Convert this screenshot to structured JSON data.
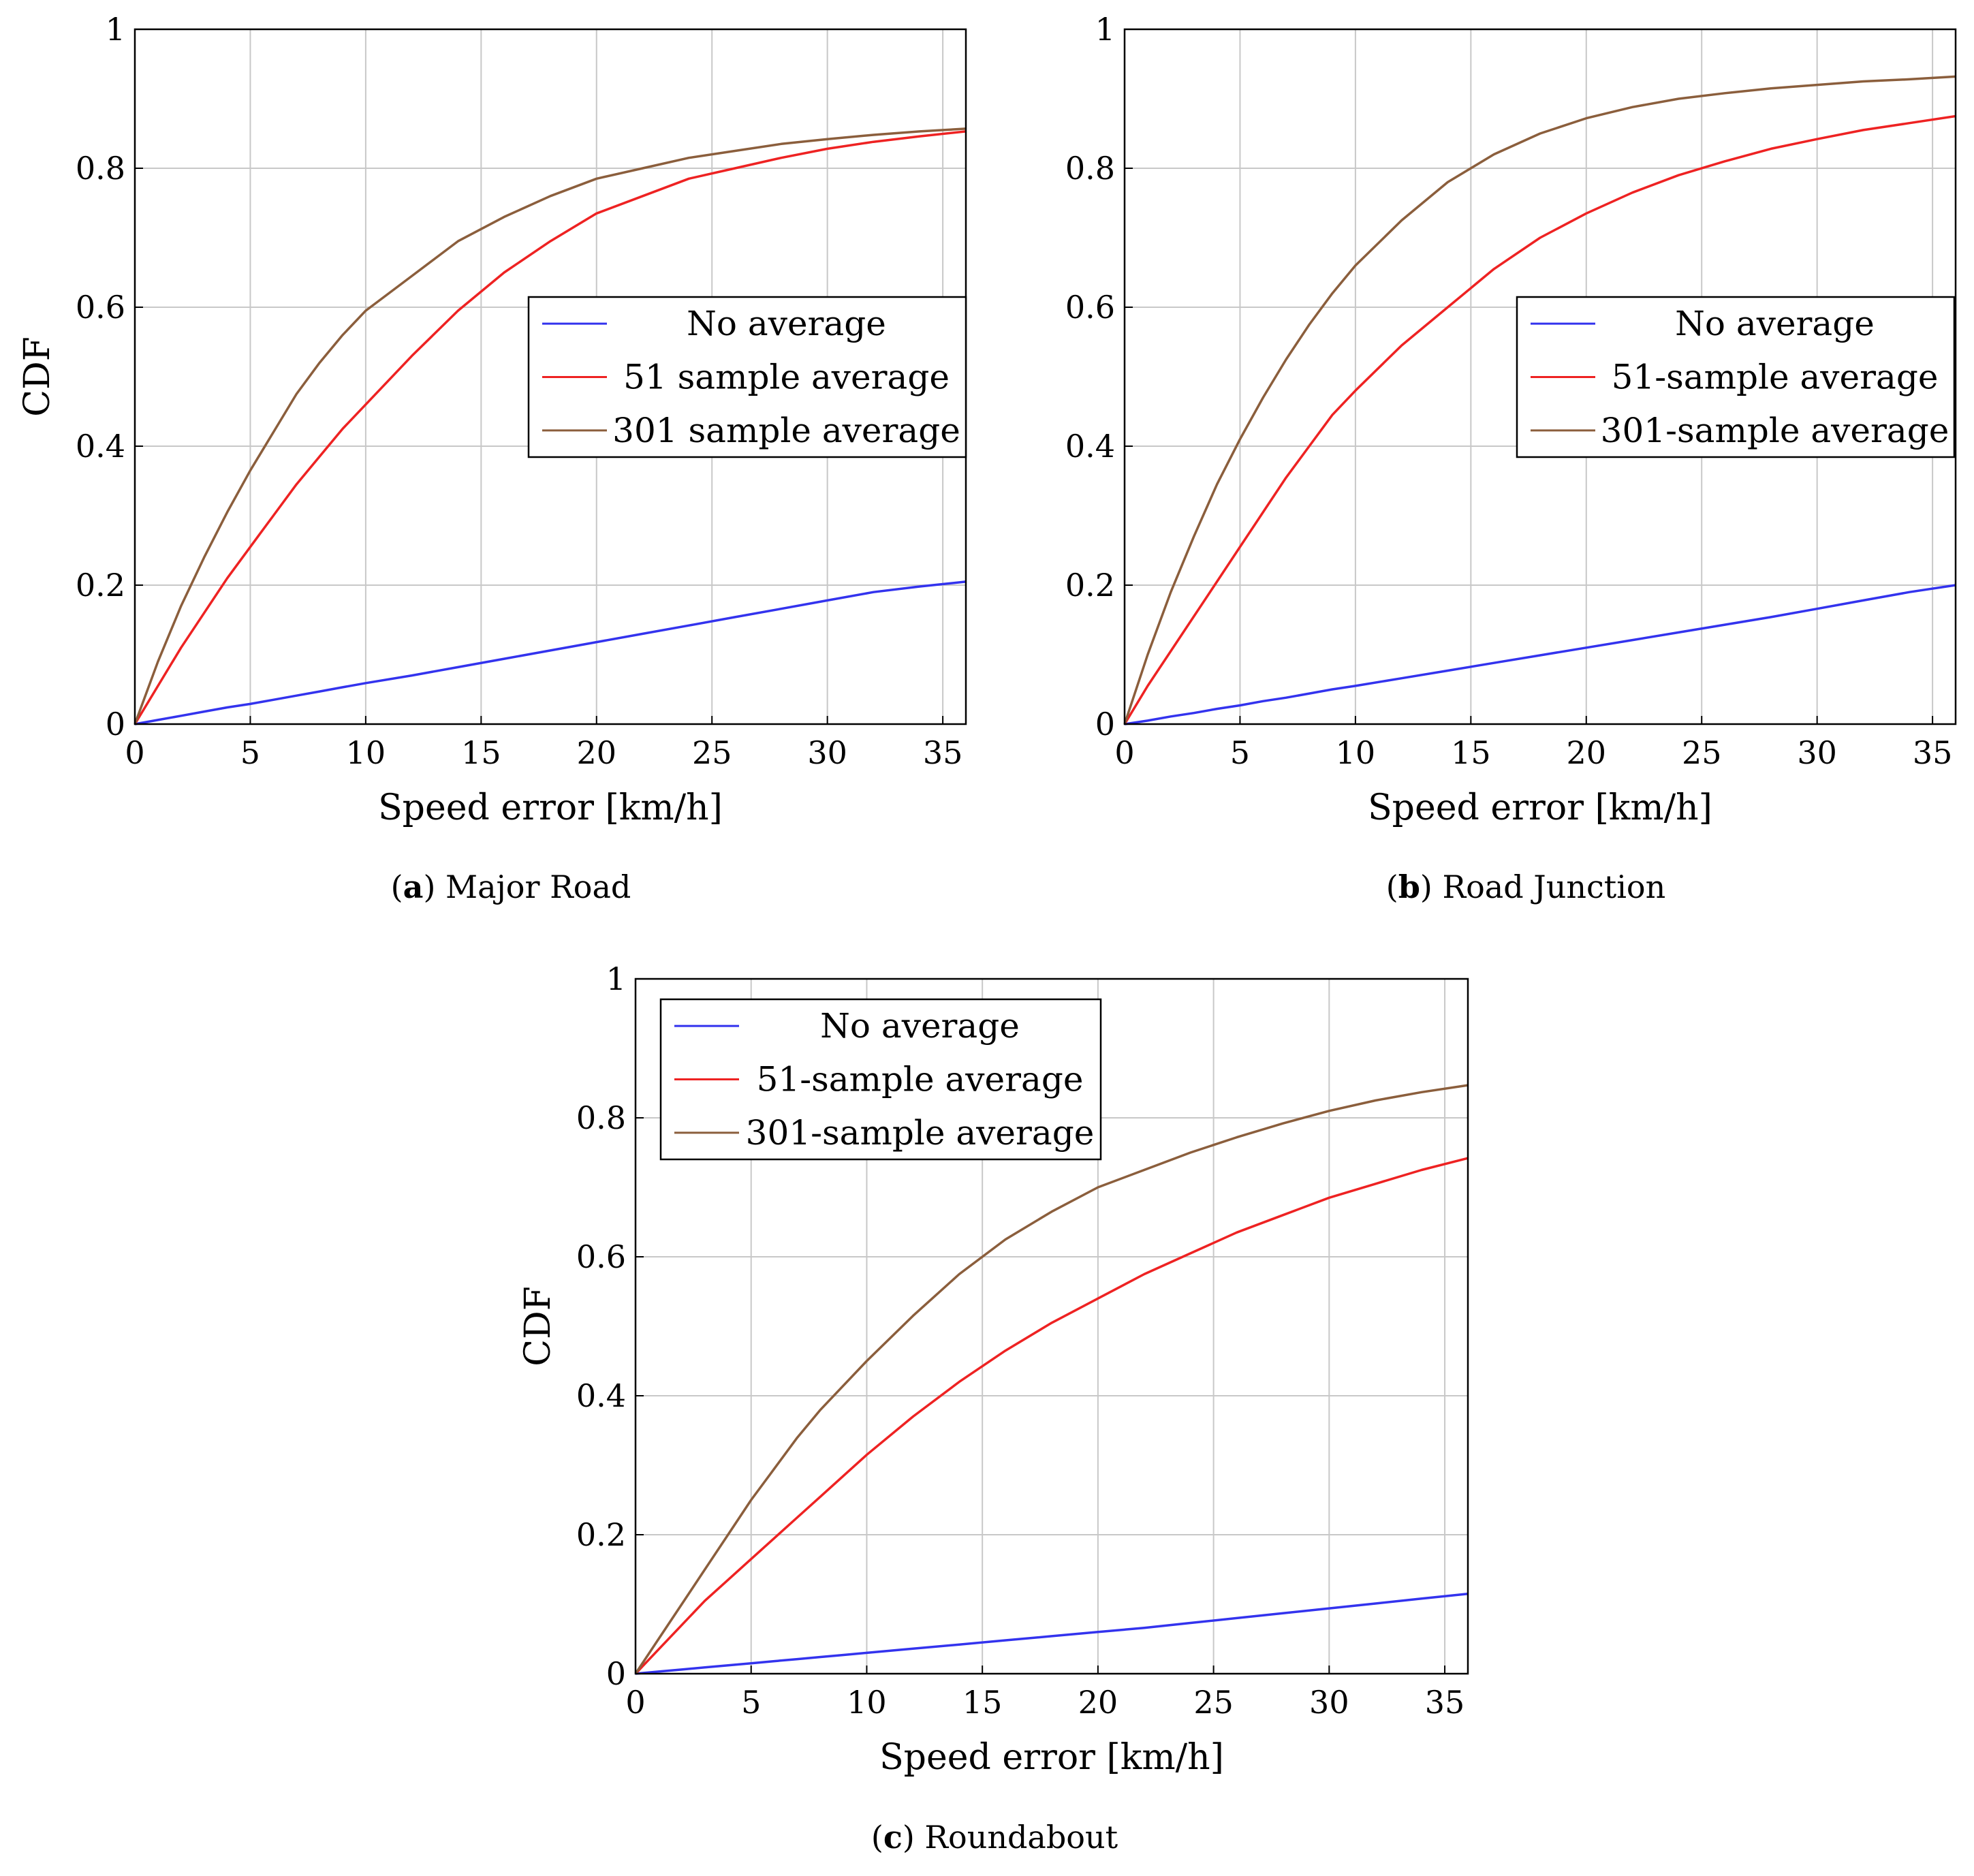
{
  "charts": [
    {
      "id": "a",
      "caption_letter": "a",
      "caption_text": "Major Road",
      "chart_data": {
        "type": "line",
        "title": "",
        "xlabel": "Speed error [km/h]",
        "ylabel": "CDF",
        "xlim": [
          0,
          36
        ],
        "ylim": [
          0,
          1
        ],
        "xticks": [
          0,
          5,
          10,
          15,
          20,
          25,
          30,
          35
        ],
        "yticks": [
          0,
          0.2,
          0.4,
          0.6,
          0.8,
          1
        ],
        "ytick_labels": [
          "0",
          "0.2",
          "0.4",
          "0.6",
          "0.8",
          "1"
        ],
        "grid": true,
        "legend_position": "center-right",
        "x": [
          0,
          1,
          2,
          3,
          4,
          5,
          6,
          7,
          8,
          9,
          10,
          12,
          14,
          16,
          18,
          20,
          22,
          24,
          26,
          28,
          30,
          32,
          34,
          36
        ],
        "series": [
          {
            "name": "No average",
            "color": "#3333ee",
            "values": [
              0,
              0.006,
              0.012,
              0.018,
              0.024,
              0.029,
              0.035,
              0.041,
              0.047,
              0.053,
              0.059,
              0.07,
              0.082,
              0.094,
              0.106,
              0.118,
              0.13,
              0.142,
              0.154,
              0.166,
              0.178,
              0.19,
              0.198,
              0.205
            ]
          },
          {
            "name": "51 sample average",
            "color": "#ee2222",
            "values": [
              0,
              0.055,
              0.11,
              0.16,
              0.21,
              0.255,
              0.3,
              0.345,
              0.385,
              0.425,
              0.46,
              0.53,
              0.595,
              0.65,
              0.695,
              0.735,
              0.76,
              0.785,
              0.8,
              0.815,
              0.828,
              0.838,
              0.846,
              0.853
            ]
          },
          {
            "name": "301 sample average",
            "color": "#8b5e3c",
            "values": [
              0,
              0.09,
              0.17,
              0.24,
              0.305,
              0.365,
              0.42,
              0.475,
              0.52,
              0.56,
              0.595,
              0.645,
              0.695,
              0.73,
              0.76,
              0.785,
              0.8,
              0.815,
              0.825,
              0.835,
              0.842,
              0.848,
              0.853,
              0.857
            ]
          }
        ]
      }
    },
    {
      "id": "b",
      "caption_letter": "b",
      "caption_text": "Road Junction",
      "chart_data": {
        "type": "line",
        "title": "",
        "xlabel": "Speed error [km/h]",
        "ylabel": "",
        "xlim": [
          0,
          36
        ],
        "ylim": [
          0,
          1
        ],
        "xticks": [
          0,
          5,
          10,
          15,
          20,
          25,
          30,
          35
        ],
        "yticks": [
          0,
          0.2,
          0.4,
          0.6,
          0.8,
          1
        ],
        "ytick_labels": [
          "0",
          "0.2",
          "0.4",
          "0.6",
          "0.8",
          "1"
        ],
        "grid": true,
        "legend_position": "center-right",
        "x": [
          0,
          1,
          2,
          3,
          4,
          5,
          6,
          7,
          8,
          9,
          10,
          12,
          14,
          16,
          18,
          20,
          22,
          24,
          26,
          28,
          30,
          32,
          34,
          36
        ],
        "series": [
          {
            "name": "No average",
            "color": "#3333ee",
            "values": [
              0,
              0.005,
              0.011,
              0.016,
              0.022,
              0.027,
              0.033,
              0.038,
              0.044,
              0.05,
              0.055,
              0.066,
              0.077,
              0.088,
              0.099,
              0.11,
              0.121,
              0.132,
              0.143,
              0.154,
              0.166,
              0.178,
              0.19,
              0.2
            ]
          },
          {
            "name": "51-sample average",
            "color": "#ee2222",
            "values": [
              0,
              0.055,
              0.105,
              0.155,
              0.205,
              0.255,
              0.305,
              0.355,
              0.4,
              0.445,
              0.48,
              0.545,
              0.6,
              0.655,
              0.7,
              0.735,
              0.765,
              0.79,
              0.81,
              0.828,
              0.842,
              0.855,
              0.865,
              0.875
            ]
          },
          {
            "name": "301-sample average",
            "color": "#8b5e3c",
            "values": [
              0,
              0.1,
              0.19,
              0.27,
              0.345,
              0.41,
              0.47,
              0.525,
              0.575,
              0.62,
              0.66,
              0.725,
              0.78,
              0.82,
              0.85,
              0.872,
              0.888,
              0.9,
              0.908,
              0.915,
              0.92,
              0.925,
              0.928,
              0.932
            ]
          }
        ]
      }
    },
    {
      "id": "c",
      "caption_letter": "c",
      "caption_text": "Roundabout",
      "chart_data": {
        "type": "line",
        "title": "",
        "xlabel": "Speed error [km/h]",
        "ylabel": "CDF",
        "xlim": [
          0,
          36
        ],
        "ylim": [
          0,
          1
        ],
        "xticks": [
          0,
          5,
          10,
          15,
          20,
          25,
          30,
          35
        ],
        "yticks": [
          0,
          0.2,
          0.4,
          0.6,
          0.8,
          1
        ],
        "ytick_labels": [
          "0",
          "0.2",
          "0.4",
          "0.6",
          "0.8",
          "1"
        ],
        "grid": true,
        "legend_position": "top-left",
        "x": [
          0,
          1,
          2,
          3,
          4,
          5,
          6,
          7,
          8,
          9,
          10,
          12,
          14,
          16,
          18,
          20,
          22,
          24,
          26,
          28,
          30,
          32,
          34,
          36
        ],
        "series": [
          {
            "name": "No average",
            "color": "#3333ee",
            "values": [
              0,
              0.003,
              0.006,
              0.009,
              0.012,
              0.015,
              0.018,
              0.021,
              0.024,
              0.027,
              0.03,
              0.036,
              0.042,
              0.048,
              0.054,
              0.06,
              0.066,
              0.073,
              0.08,
              0.087,
              0.094,
              0.101,
              0.108,
              0.115
            ]
          },
          {
            "name": "51-sample average",
            "color": "#ee2222",
            "values": [
              0,
              0.035,
              0.07,
              0.105,
              0.135,
              0.165,
              0.195,
              0.225,
              0.255,
              0.285,
              0.315,
              0.37,
              0.42,
              0.465,
              0.505,
              0.54,
              0.575,
              0.605,
              0.635,
              0.66,
              0.685,
              0.705,
              0.725,
              0.742
            ]
          },
          {
            "name": "301-sample average",
            "color": "#8b5e3c",
            "values": [
              0,
              0.05,
              0.1,
              0.15,
              0.2,
              0.25,
              0.295,
              0.34,
              0.38,
              0.415,
              0.45,
              0.515,
              0.575,
              0.625,
              0.665,
              0.7,
              0.725,
              0.75,
              0.772,
              0.792,
              0.81,
              0.825,
              0.837,
              0.847
            ]
          }
        ]
      }
    }
  ]
}
